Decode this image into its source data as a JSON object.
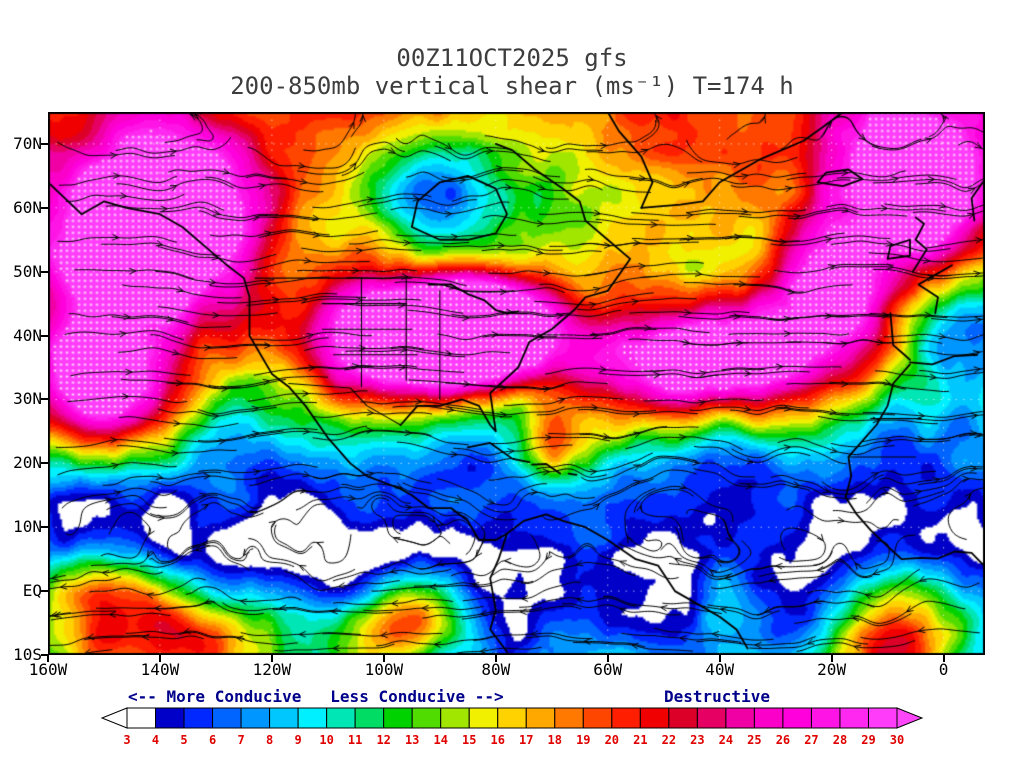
{
  "title": {
    "line1": "00Z11OCT2025 gfs",
    "line2": "200-850mb vertical shear (ms⁻¹) T=174 h"
  },
  "axes": {
    "lat_labels": [
      "70N",
      "60N",
      "50N",
      "40N",
      "30N",
      "20N",
      "10N",
      "EQ",
      "10S"
    ],
    "lat_values": [
      70,
      60,
      50,
      40,
      30,
      20,
      10,
      0,
      -10
    ],
    "lon_labels": [
      "160W",
      "140W",
      "120W",
      "100W",
      "80W",
      "60W",
      "40W",
      "20W",
      "0"
    ],
    "lon_values": [
      -160,
      -140,
      -120,
      -100,
      -80,
      -60,
      -40,
      -20,
      0
    ]
  },
  "legend": {
    "left": "<-- More Conducive   Less Conducive -->",
    "right": "Destructive",
    "text_color": "#00008B"
  },
  "colorbar": {
    "tick_labels": [
      "3",
      "4",
      "5",
      "6",
      "7",
      "8",
      "9",
      "10",
      "11",
      "12",
      "13",
      "14",
      "15",
      "16",
      "17",
      "18",
      "19",
      "20",
      "21",
      "22",
      "23",
      "24",
      "25",
      "26",
      "27",
      "28",
      "29",
      "30"
    ],
    "tick_color": "#E00000",
    "under_color": "#FFFFFF",
    "over_color": "#FF46FA",
    "interval_colors": [
      "#FFFFFF",
      "#0000C8",
      "#0028FF",
      "#0064FF",
      "#0096FF",
      "#00C8FF",
      "#00F0FF",
      "#00E6B4",
      "#00DC64",
      "#00D200",
      "#50DC00",
      "#A0E600",
      "#F0F000",
      "#FFD200",
      "#FFA800",
      "#FF7800",
      "#FF4600",
      "#FF1E00",
      "#F00000",
      "#DC0028",
      "#E60064",
      "#F000A4",
      "#FA00C8",
      "#FF00DC",
      "#FF14E6",
      "#FF28F0",
      "#FF3CFA"
    ]
  },
  "chart_data": {
    "type": "heatmap",
    "title": "00Z11OCT2025 gfs",
    "subtitle": "200-850mb vertical shear (ms⁻¹) T=174 h",
    "model": "gfs",
    "init_time": "00Z11OCT2025",
    "forecast_hour": 174,
    "variable": "200-850mb vertical shear",
    "units": "ms⁻¹",
    "x_axis": {
      "label": "longitude",
      "ticks": [
        "160W",
        "140W",
        "120W",
        "100W",
        "80W",
        "60W",
        "40W",
        "20W",
        "0"
      ]
    },
    "y_axis": {
      "label": "latitude",
      "ticks": [
        "70N",
        "60N",
        "50N",
        "40N",
        "30N",
        "20N",
        "10N",
        "EQ",
        "10S"
      ]
    },
    "color_levels": [
      3,
      4,
      5,
      6,
      7,
      8,
      9,
      10,
      11,
      12,
      13,
      14,
      15,
      16,
      17,
      18,
      19,
      20,
      21,
      22,
      23,
      24,
      25,
      26,
      27,
      28,
      29,
      30
    ],
    "annotations": [
      "<-- More Conducive",
      "Less Conducive -->",
      "Destructive"
    ],
    "high_shear_regions": [
      {
        "lon": -142,
        "lat": 55,
        "amplitude": 26,
        "sigma_lon": 15,
        "sigma_lat": 11
      },
      {
        "lon": -150,
        "lat": 32,
        "amplitude": 22,
        "sigma_lon": 11,
        "sigma_lat": 7
      },
      {
        "lon": -97,
        "lat": 39,
        "amplitude": 26,
        "sigma_lon": 14,
        "sigma_lat": 7
      },
      {
        "lon": -83,
        "lat": 42,
        "amplitude": 22,
        "sigma_lon": 9,
        "sigma_lat": 6
      },
      {
        "lon": -40,
        "lat": 36,
        "amplitude": 25,
        "sigma_lon": 18,
        "sigma_lat": 6.5
      },
      {
        "lon": -20,
        "lat": 47,
        "amplitude": 15,
        "sigma_lon": 8,
        "sigma_lat": 6
      },
      {
        "lon": -5,
        "lat": 63,
        "amplitude": 23,
        "sigma_lon": 11,
        "sigma_lat": 10
      },
      {
        "lon": -70,
        "lat": 23,
        "amplitude": 9,
        "sigma_lon": 6,
        "sigma_lat": 4
      },
      {
        "lon": -140,
        "lat": -7,
        "amplitude": 15,
        "sigma_lon": 15,
        "sigma_lat": 6
      },
      {
        "lon": -97,
        "lat": -5,
        "amplitude": 13,
        "sigma_lon": 7,
        "sigma_lat": 5
      },
      {
        "lon": -8,
        "lat": -8,
        "amplitude": 15,
        "sigma_lon": 8,
        "sigma_lat": 6
      },
      {
        "lon": -152,
        "lat": 1,
        "amplitude": 7,
        "sigma_lon": 9,
        "sigma_lat": 4
      }
    ],
    "low_shear_regions": [
      {
        "lon": -88,
        "lat": 62,
        "amplitude": -9,
        "sigma_lon": 13,
        "sigma_lat": 8
      },
      {
        "lon": 3,
        "lat": 41,
        "amplitude": -7,
        "sigma_lon": 7,
        "sigma_lat": 6
      },
      {
        "lon": -120,
        "lat": 8,
        "amplitude": -3,
        "sigma_lon": 12,
        "sigma_lat": 6
      }
    ]
  }
}
